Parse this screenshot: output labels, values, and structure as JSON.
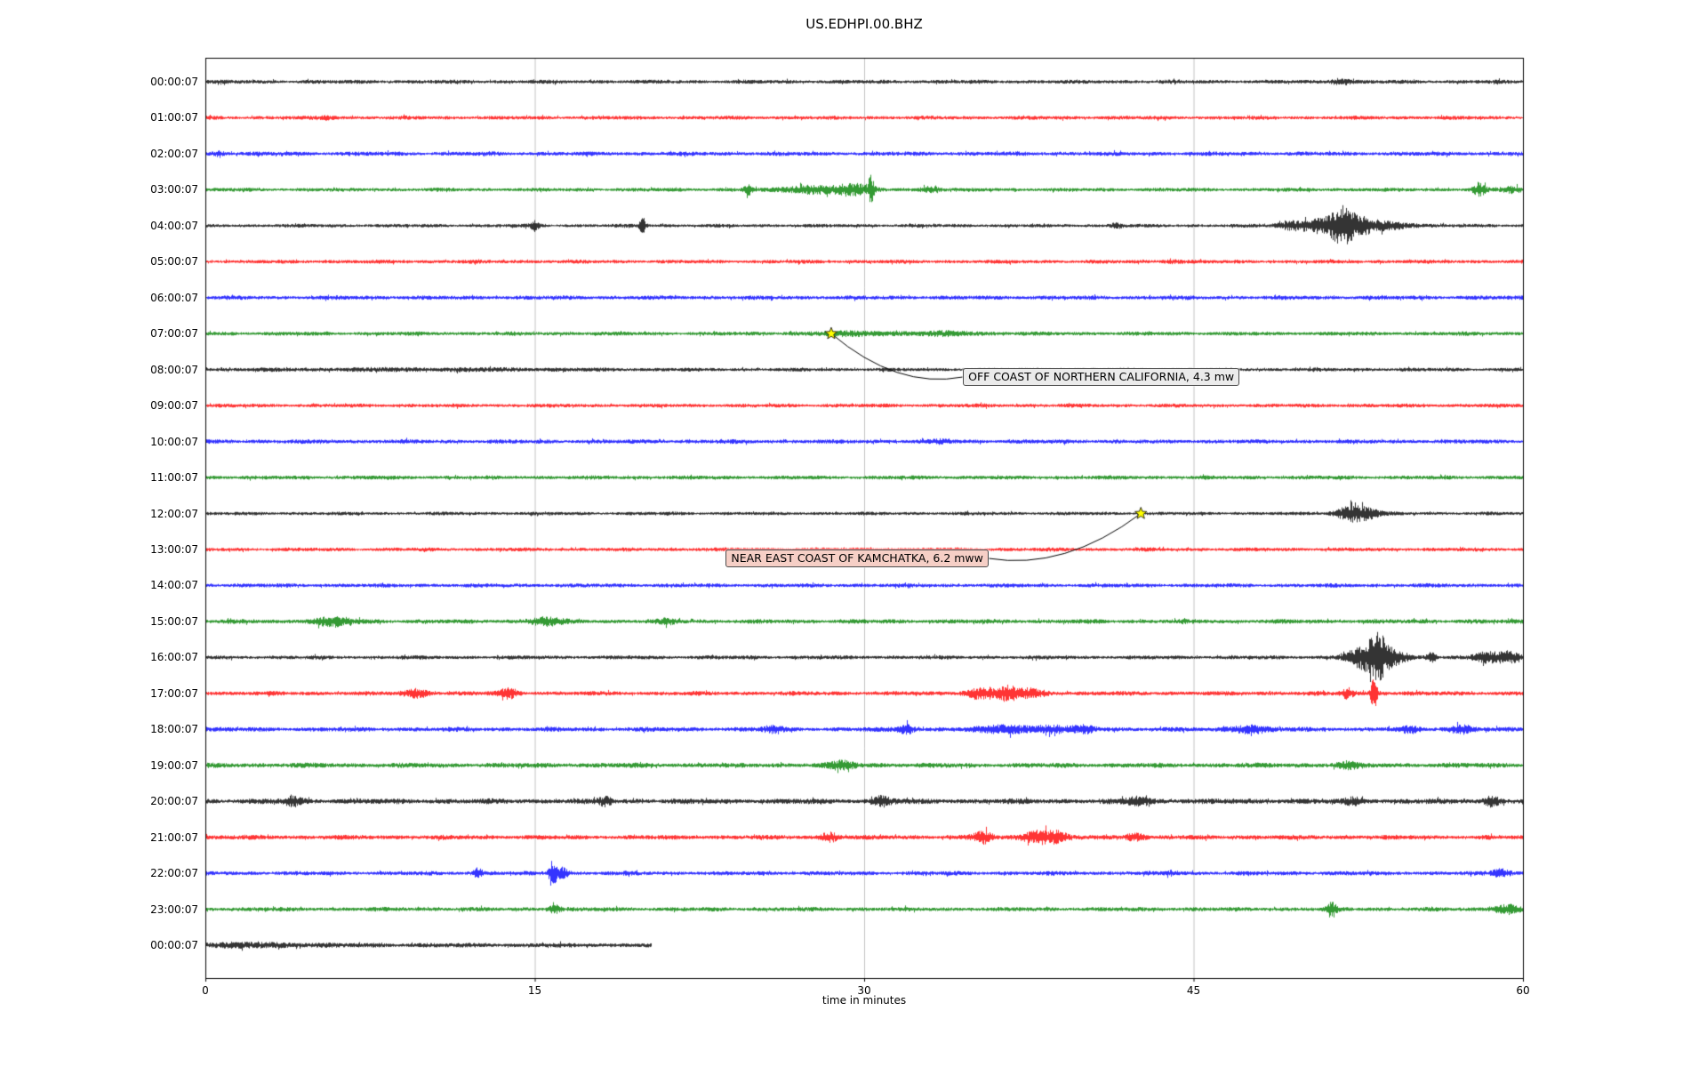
{
  "title": "US.EDHPI.00.BHZ",
  "chart_data": {
    "type": "line",
    "subtype": "seismogram_dayplot",
    "station_id": "US.EDHPI.00.BHZ",
    "xlabel": "time in minutes",
    "xlim": [
      0,
      60
    ],
    "x_ticks": [
      0,
      15,
      30,
      45,
      60
    ],
    "x_grid": [
      15,
      30,
      45
    ],
    "grid_color": "#b3b3b3",
    "trace_color_cycle": [
      "#000000",
      "#ff0000",
      "#0000ff",
      "#008000"
    ],
    "rows": [
      {
        "label": "00:00:07",
        "color": "#000000",
        "amp": 2.2,
        "bursts": [
          {
            "t": 51.7,
            "a": 3.5,
            "s": 0.3
          }
        ]
      },
      {
        "label": "01:00:07",
        "color": "#ff0000",
        "amp": 2.2,
        "bursts": [
          {
            "t": 5.5,
            "a": 1.5,
            "s": 0.3
          }
        ]
      },
      {
        "label": "02:00:07",
        "color": "#0000ff",
        "amp": 2.4,
        "bursts": [
          {
            "t": 0.6,
            "a": 2.0,
            "s": 0.2
          }
        ]
      },
      {
        "label": "03:00:07",
        "color": "#008000",
        "amp": 2.2,
        "bursts": [
          {
            "t": 24.7,
            "a": 5,
            "s": 0.15
          },
          {
            "t": 27.5,
            "a": 4,
            "s": 0.8
          },
          {
            "t": 29.4,
            "a": 6,
            "s": 0.6
          },
          {
            "t": 30.3,
            "a": 13,
            "s": 0.1
          },
          {
            "t": 33.0,
            "a": 3,
            "s": 0.3
          },
          {
            "t": 58.0,
            "a": 7,
            "s": 0.2
          },
          {
            "t": 59.5,
            "a": 3,
            "s": 0.3
          }
        ]
      },
      {
        "label": "04:00:07",
        "color": "#000000",
        "amp": 2.0,
        "bursts": [
          {
            "t": 15.0,
            "a": 4,
            "s": 0.15
          },
          {
            "t": 19.9,
            "a": 9,
            "s": 0.1
          },
          {
            "t": 41.5,
            "a": 2.5,
            "s": 0.2
          },
          {
            "t": 49.5,
            "a": 4,
            "s": 0.5
          },
          {
            "t": 50.8,
            "a": 7,
            "s": 0.6
          },
          {
            "t": 51.7,
            "a": 15,
            "s": 0.35
          },
          {
            "t": 52.4,
            "a": 9,
            "s": 0.5
          },
          {
            "t": 53.6,
            "a": 4,
            "s": 1.0
          }
        ]
      },
      {
        "label": "05:00:07",
        "color": "#ff0000",
        "amp": 2.2,
        "bursts": [
          {
            "t": 44.0,
            "a": 1.5,
            "s": 0.3
          }
        ]
      },
      {
        "label": "06:00:07",
        "color": "#0000ff",
        "amp": 2.4,
        "bursts": []
      },
      {
        "label": "07:00:07",
        "color": "#008000",
        "amp": 2.3,
        "bursts": [
          {
            "t": 29.8,
            "a": 1.8,
            "s": 1.5
          },
          {
            "t": 34.0,
            "a": 1.5,
            "s": 1.0
          }
        ]
      },
      {
        "label": "08:00:07",
        "color": "#000000",
        "amp": 2.1,
        "bursts": [
          {
            "t": 10.0,
            "a": 0.8,
            "s": 5.0
          }
        ]
      },
      {
        "label": "09:00:07",
        "color": "#ff0000",
        "amp": 2.2,
        "bursts": []
      },
      {
        "label": "10:00:07",
        "color": "#0000ff",
        "amp": 2.4,
        "bursts": [
          {
            "t": 33.5,
            "a": 1.5,
            "s": 0.3
          }
        ]
      },
      {
        "label": "11:00:07",
        "color": "#008000",
        "amp": 2.3,
        "bursts": []
      },
      {
        "label": "12:00:07",
        "color": "#000000",
        "amp": 2.0,
        "bursts": [
          {
            "t": 52.2,
            "a": 8,
            "s": 0.5
          },
          {
            "t": 53.0,
            "a": 4,
            "s": 0.4
          }
        ]
      },
      {
        "label": "13:00:07",
        "color": "#ff0000",
        "amp": 2.2,
        "bursts": []
      },
      {
        "label": "14:00:07",
        "color": "#0000ff",
        "amp": 2.3,
        "bursts": []
      },
      {
        "label": "15:00:07",
        "color": "#008000",
        "amp": 2.5,
        "bursts": [
          {
            "t": 5.8,
            "a": 4,
            "s": 0.7
          },
          {
            "t": 15.5,
            "a": 4,
            "s": 0.5
          },
          {
            "t": 21.0,
            "a": 2,
            "s": 0.4
          }
        ]
      },
      {
        "label": "16:00:07",
        "color": "#000000",
        "amp": 2.2,
        "bursts": [
          {
            "t": 52.8,
            "a": 12,
            "s": 0.6
          },
          {
            "t": 53.4,
            "a": 17,
            "s": 0.3
          },
          {
            "t": 54.1,
            "a": 7,
            "s": 0.5
          },
          {
            "t": 55.8,
            "a": 6,
            "s": 0.15
          },
          {
            "t": 58.3,
            "a": 5,
            "s": 0.4
          },
          {
            "t": 59.3,
            "a": 6,
            "s": 0.4
          }
        ]
      },
      {
        "label": "17:00:07",
        "color": "#ff0000",
        "amp": 2.5,
        "bursts": [
          {
            "t": 9.6,
            "a": 4,
            "s": 0.4
          },
          {
            "t": 13.8,
            "a": 5,
            "s": 0.3
          },
          {
            "t": 35.3,
            "a": 6,
            "s": 0.5
          },
          {
            "t": 36.5,
            "a": 7,
            "s": 0.4
          },
          {
            "t": 37.6,
            "a": 4,
            "s": 0.5
          },
          {
            "t": 52.0,
            "a": 5,
            "s": 0.2
          },
          {
            "t": 53.2,
            "a": 19,
            "s": 0.1
          }
        ]
      },
      {
        "label": "18:00:07",
        "color": "#0000ff",
        "amp": 2.6,
        "bursts": [
          {
            "t": 25.8,
            "a": 3,
            "s": 0.3
          },
          {
            "t": 31.9,
            "a": 5,
            "s": 0.25
          },
          {
            "t": 36.5,
            "a": 4,
            "s": 0.8
          },
          {
            "t": 38.5,
            "a": 4,
            "s": 0.5
          },
          {
            "t": 40.0,
            "a": 3,
            "s": 0.4
          },
          {
            "t": 47.5,
            "a": 4,
            "s": 0.6
          },
          {
            "t": 54.8,
            "a": 3,
            "s": 0.3
          },
          {
            "t": 57.2,
            "a": 4,
            "s": 0.4
          }
        ]
      },
      {
        "label": "19:00:07",
        "color": "#008000",
        "amp": 2.8,
        "bursts": [
          {
            "t": 29.0,
            "a": 4,
            "s": 0.4
          },
          {
            "t": 52.0,
            "a": 3,
            "s": 0.4
          }
        ]
      },
      {
        "label": "20:00:07",
        "color": "#000000",
        "amp": 3.0,
        "bursts": [
          {
            "t": 4.0,
            "a": 4,
            "s": 0.3
          },
          {
            "t": 18.2,
            "a": 4,
            "s": 0.2
          },
          {
            "t": 30.8,
            "a": 5,
            "s": 0.3
          },
          {
            "t": 42.5,
            "a": 4,
            "s": 0.4
          },
          {
            "t": 52.3,
            "a": 3,
            "s": 0.3
          },
          {
            "t": 58.6,
            "a": 5,
            "s": 0.25
          }
        ]
      },
      {
        "label": "21:00:07",
        "color": "#ff0000",
        "amp": 2.6,
        "bursts": [
          {
            "t": 28.4,
            "a": 5,
            "s": 0.25
          },
          {
            "t": 35.4,
            "a": 6,
            "s": 0.3
          },
          {
            "t": 37.9,
            "a": 7,
            "s": 0.5
          },
          {
            "t": 38.8,
            "a": 5,
            "s": 0.3
          },
          {
            "t": 42.3,
            "a": 4,
            "s": 0.3
          }
        ]
      },
      {
        "label": "22:00:07",
        "color": "#0000ff",
        "amp": 2.4,
        "bursts": [
          {
            "t": 12.4,
            "a": 5,
            "s": 0.15
          },
          {
            "t": 15.8,
            "a": 13,
            "s": 0.12
          },
          {
            "t": 16.2,
            "a": 7,
            "s": 0.2
          },
          {
            "t": 44.0,
            "a": 2,
            "s": 0.2
          },
          {
            "t": 59.0,
            "a": 4,
            "s": 0.3
          }
        ]
      },
      {
        "label": "23:00:07",
        "color": "#008000",
        "amp": 2.4,
        "bursts": [
          {
            "t": 15.9,
            "a": 4,
            "s": 0.2
          },
          {
            "t": 51.3,
            "a": 7,
            "s": 0.15
          },
          {
            "t": 59.2,
            "a": 5,
            "s": 0.4
          }
        ]
      },
      {
        "label": "00:00:07",
        "color": "#000000",
        "amp": 2.6,
        "end": 20.3,
        "bursts": [
          {
            "t": 2.0,
            "a": 1.5,
            "s": 2.0
          }
        ]
      }
    ],
    "events": [
      {
        "label": "OFF COAST OF NORTHERN CALIFORNIA, 4.3 mw",
        "star": {
          "minute": 28.5,
          "row": 7
        },
        "box": {
          "minute": 34.5,
          "row": 8.2,
          "attach": "left"
        },
        "box_color": "#ebebeb",
        "star_color": "#ffff00"
      },
      {
        "label": "NEAR EAST COAST OF KAMCHATKA, 6.2 mww",
        "star": {
          "minute": 42.6,
          "row": 12
        },
        "box": {
          "minute": 23.7,
          "row": 13.25,
          "attach": "right"
        },
        "box_color": "#f6cfc6",
        "star_color": "#ffff00"
      }
    ]
  }
}
